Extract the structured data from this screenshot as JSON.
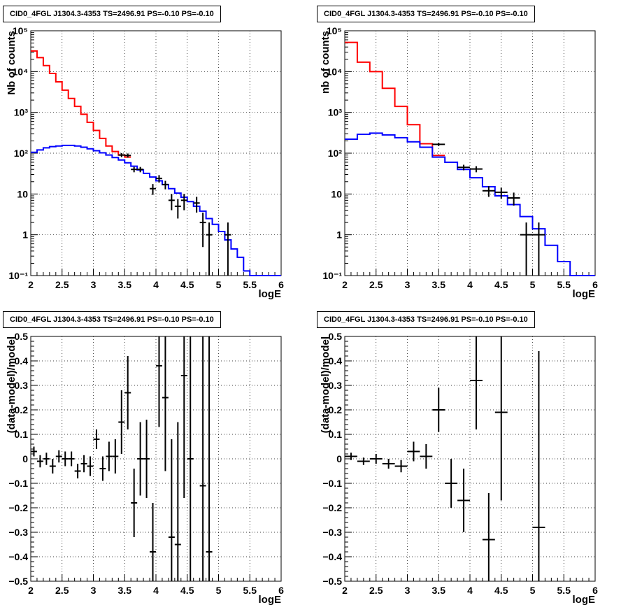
{
  "chart_data": [
    {
      "type": "line",
      "title": "CID0_4FGL J1304.3-4353 TS=2496.91 PS=-0.10 PS=-0.10",
      "xlabel": "logE",
      "ylabel": "Nb of counts",
      "yscale": "log",
      "xlim": [
        2,
        6
      ],
      "ylim": [
        0.1,
        100000
      ],
      "xticks": [
        "2",
        "2.5",
        "3",
        "3.5",
        "4",
        "4.5",
        "5",
        "5.5",
        "6"
      ],
      "yticks": [
        "10⁻¹",
        "1",
        "10",
        "10²",
        "10³",
        "10⁴",
        "10⁵"
      ],
      "grid": true,
      "bin_edges": [
        2.0,
        2.1,
        2.2,
        2.3,
        2.4,
        2.5,
        2.6,
        2.7,
        2.8,
        2.9,
        3.0,
        3.1,
        3.2,
        3.3,
        3.4,
        3.5,
        3.6,
        3.7,
        3.8,
        3.9,
        4.0,
        4.1,
        4.2,
        4.3,
        4.4,
        4.5,
        4.6,
        4.7,
        4.8,
        4.9,
        5.0,
        5.1,
        5.2,
        5.3,
        5.4,
        5.5,
        5.6,
        5.7,
        5.8,
        5.9,
        6.0
      ],
      "series": [
        {
          "color": "#ff0000",
          "style": "step",
          "values": [
            32000,
            22000,
            14000,
            9000,
            5600,
            3500,
            2200,
            1400,
            900,
            570,
            360,
            230,
            150,
            110,
            90,
            80,
            null,
            null,
            null,
            null,
            null,
            null,
            null,
            null,
            null,
            null,
            null,
            null,
            null,
            null,
            null,
            null,
            null,
            null,
            null,
            null,
            null,
            null,
            null,
            null
          ]
        },
        {
          "color": "#0000ff",
          "style": "step",
          "values": [
            105,
            120,
            135,
            145,
            150,
            155,
            155,
            150,
            140,
            128,
            115,
            102,
            90,
            78,
            68,
            58,
            48,
            39,
            32,
            26,
            21,
            17,
            13.5,
            10.5,
            8.3,
            6.5,
            5,
            3.8,
            2.5,
            1.8,
            1.2,
            0.75,
            0.45,
            0.28,
            0.13,
            0.1,
            0.1,
            0.1,
            0.1,
            0.1
          ]
        },
        {
          "color": "#000000",
          "style": "points",
          "points": [
            [
              3.45,
              90,
              10
            ],
            [
              3.55,
              88,
              10
            ],
            [
              3.65,
              40,
              6
            ],
            [
              3.75,
              40,
              6
            ],
            [
              3.95,
              13.5,
              4
            ],
            [
              4.05,
              24,
              5
            ],
            [
              4.15,
              17,
              4
            ],
            [
              4.25,
              7,
              3
            ],
            [
              4.35,
              5,
              2.5
            ],
            [
              4.45,
              7,
              3
            ],
            [
              4.65,
              6,
              2.5
            ],
            [
              4.75,
              2,
              1.5
            ],
            [
              4.85,
              1,
              1
            ],
            [
              5.15,
              1,
              1
            ]
          ]
        }
      ]
    },
    {
      "type": "line",
      "title": "CID0_4FGL J1304.3-4353 TS=2496.91 PS=-0.10 PS=-0.10",
      "xlabel": "logE",
      "ylabel": "nb of counts",
      "yscale": "log",
      "xlim": [
        2,
        6
      ],
      "ylim": [
        0.1,
        100000
      ],
      "xticks": [
        "2",
        "2.5",
        "3",
        "3.5",
        "4",
        "4.5",
        "5",
        "5.5",
        "6"
      ],
      "yticks": [
        "10⁻¹",
        "1",
        "10",
        "10²",
        "10³",
        "10⁴",
        "10⁵"
      ],
      "grid": true,
      "bin_edges": [
        2.0,
        2.2,
        2.4,
        2.6,
        2.8,
        3.0,
        3.2,
        3.4,
        3.6,
        3.8,
        4.0,
        4.2,
        4.4,
        4.6,
        4.8,
        5.0,
        5.2,
        5.4,
        5.6,
        5.8,
        6.0
      ],
      "series": [
        {
          "color": "#ff0000",
          "style": "step",
          "values": [
            52000,
            17000,
            10000,
            3900,
            1400,
            500,
            170,
            88,
            null,
            null,
            null,
            null,
            null,
            null,
            null,
            null,
            null,
            null,
            null,
            null
          ]
        },
        {
          "color": "#0000ff",
          "style": "step",
          "values": [
            220,
            290,
            310,
            280,
            240,
            190,
            140,
            80,
            60,
            40,
            25,
            15,
            9,
            5.5,
            2.8,
            1.4,
            0.55,
            0.22,
            0.1,
            0.1
          ]
        },
        {
          "color": "#000000",
          "style": "points",
          "points": [
            [
              3.5,
              165,
              15
            ],
            [
              3.9,
              45,
              7
            ],
            [
              4.1,
              41,
              7
            ],
            [
              4.3,
              12,
              3.5
            ],
            [
              4.5,
              11,
              3.3
            ],
            [
              4.7,
              8,
              2.8
            ],
            [
              4.9,
              1,
              1
            ],
            [
              5.1,
              1,
              1
            ]
          ]
        }
      ]
    },
    {
      "type": "scatter",
      "title": "CID0_4FGL J1304.3-4353 TS=2496.91 PS=-0.10 PS=-0.10",
      "xlabel": "logE",
      "ylabel": "(data-model)/model",
      "xlim": [
        2,
        6
      ],
      "ylim": [
        -0.5,
        0.5
      ],
      "xticks": [
        "2",
        "2.5",
        "3",
        "3.5",
        "4",
        "4.5",
        "5",
        "5.5",
        "6"
      ],
      "yticks": [
        "−0.5",
        "−0.4",
        "−0.3",
        "−0.2",
        "−0.1",
        "0",
        "0.1",
        "0.2",
        "0.3",
        "0.4",
        "0.5"
      ],
      "grid": true,
      "x_halfwidth": 0.05,
      "points": [
        [
          2.05,
          0.03,
          0.02
        ],
        [
          2.15,
          -0.01,
          0.025
        ],
        [
          2.25,
          0.0,
          0.025
        ],
        [
          2.35,
          -0.03,
          0.03
        ],
        [
          2.45,
          0.01,
          0.025
        ],
        [
          2.55,
          0.0,
          0.03
        ],
        [
          2.65,
          0.0,
          0.03
        ],
        [
          2.75,
          -0.05,
          0.03
        ],
        [
          2.85,
          -0.02,
          0.035
        ],
        [
          2.95,
          -0.03,
          0.04
        ],
        [
          3.05,
          0.08,
          0.04
        ],
        [
          3.15,
          -0.04,
          0.05
        ],
        [
          3.25,
          0.01,
          0.06
        ],
        [
          3.35,
          0.01,
          0.07
        ],
        [
          3.45,
          0.15,
          0.13
        ],
        [
          3.55,
          0.27,
          0.15
        ],
        [
          3.65,
          -0.18,
          0.14
        ],
        [
          3.75,
          0.0,
          0.15
        ],
        [
          3.85,
          0.0,
          0.16
        ],
        [
          3.95,
          -0.38,
          0.2
        ],
        [
          4.05,
          0.38,
          0.25
        ],
        [
          4.15,
          0.25,
          0.3
        ],
        [
          4.25,
          -0.32,
          0.4
        ],
        [
          4.35,
          -0.35,
          0.5
        ],
        [
          4.45,
          0.34,
          0.5
        ],
        [
          4.55,
          0.0,
          0.6
        ],
        [
          4.75,
          -0.11,
          0.7
        ],
        [
          4.85,
          -0.38,
          0.9
        ]
      ]
    },
    {
      "type": "scatter",
      "title": "CID0_4FGL J1304.3-4353 TS=2496.91 PS=-0.10 PS=-0.10",
      "xlabel": "logE",
      "ylabel": "(data-model)/model",
      "xlim": [
        2,
        6
      ],
      "ylim": [
        -0.5,
        0.5
      ],
      "xticks": [
        "2",
        "2.5",
        "3",
        "3.5",
        "4",
        "4.5",
        "5",
        "5.5",
        "6"
      ],
      "yticks": [
        "−0.5",
        "−0.4",
        "−0.3",
        "−0.2",
        "−0.1",
        "0",
        "0.1",
        "0.2",
        "0.3",
        "0.4",
        "0.5"
      ],
      "grid": true,
      "x_halfwidth": 0.1,
      "points": [
        [
          2.1,
          0.01,
          0.015
        ],
        [
          2.3,
          -0.01,
          0.015
        ],
        [
          2.5,
          0.0,
          0.02
        ],
        [
          2.7,
          -0.02,
          0.02
        ],
        [
          2.9,
          -0.03,
          0.025
        ],
        [
          3.1,
          0.03,
          0.04
        ],
        [
          3.3,
          0.01,
          0.05
        ],
        [
          3.5,
          0.2,
          0.09
        ],
        [
          3.7,
          -0.1,
          0.1
        ],
        [
          3.9,
          -0.17,
          0.13
        ],
        [
          4.1,
          0.32,
          0.2
        ],
        [
          4.3,
          -0.33,
          0.19
        ],
        [
          4.5,
          0.19,
          0.36
        ],
        [
          5.1,
          -0.28,
          0.72
        ]
      ]
    }
  ]
}
